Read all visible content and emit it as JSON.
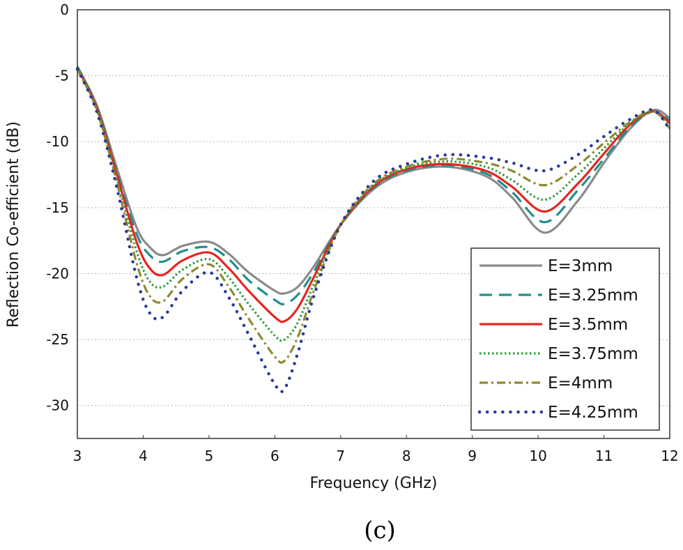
{
  "chart_data": {
    "type": "line",
    "xlabel": "Frequency (GHz)",
    "ylabel": "Reflection Co-efficient (dB)",
    "caption": "(c)",
    "xlim": [
      3,
      12
    ],
    "ylim": [
      -32.5,
      0
    ],
    "xticks": [
      "3",
      "4",
      "5",
      "6",
      "7",
      "8",
      "9",
      "10",
      "11",
      "12"
    ],
    "yticks": [
      "0",
      "-5",
      "-10",
      "-15",
      "-20",
      "-25",
      "-30"
    ],
    "grid": "horizontal dotted",
    "legend_position": "bottom-right",
    "x": [
      3.0,
      3.3,
      3.6,
      3.9,
      4.1,
      4.3,
      4.6,
      5.0,
      5.3,
      5.6,
      6.0,
      6.15,
      6.35,
      6.6,
      7.0,
      7.5,
      8.0,
      8.6,
      9.2,
      9.6,
      10.1,
      10.6,
      11.0,
      11.4,
      11.75,
      12.0
    ],
    "series": [
      {
        "name": "E=3mm",
        "color": "#8a8a8a",
        "dash": "solid",
        "values": [
          -4.3,
          -7.3,
          -12.0,
          -16.5,
          -18.0,
          -18.6,
          -17.9,
          -17.6,
          -18.5,
          -19.9,
          -21.3,
          -21.5,
          -21.0,
          -19.4,
          -16.3,
          -13.6,
          -12.3,
          -11.9,
          -12.6,
          -14.2,
          -16.9,
          -14.5,
          -11.6,
          -9.0,
          -7.6,
          -8.2
        ]
      },
      {
        "name": "E=3.25mm",
        "color": "#1f8f8c",
        "dash": "dashed",
        "values": [
          -4.3,
          -7.4,
          -12.3,
          -17.0,
          -18.6,
          -19.1,
          -18.3,
          -18.0,
          -18.9,
          -20.5,
          -22.0,
          -22.3,
          -21.6,
          -19.8,
          -16.3,
          -13.5,
          -12.2,
          -11.8,
          -12.4,
          -13.8,
          -16.1,
          -13.7,
          -11.3,
          -8.9,
          -7.7,
          -8.4
        ]
      },
      {
        "name": "E=3.5mm",
        "color": "#e8231f",
        "dash": "solid",
        "values": [
          -4.4,
          -7.5,
          -12.5,
          -17.6,
          -19.6,
          -20.1,
          -19.0,
          -18.4,
          -19.6,
          -21.3,
          -23.3,
          -23.6,
          -22.6,
          -20.2,
          -16.3,
          -13.4,
          -12.1,
          -11.7,
          -12.2,
          -13.4,
          -15.3,
          -13.2,
          -10.9,
          -8.7,
          -7.7,
          -8.6
        ]
      },
      {
        "name": "E=3.75mm",
        "color": "#2e9a3a",
        "dash": "dotted",
        "values": [
          -4.4,
          -7.6,
          -12.8,
          -18.3,
          -20.6,
          -21.0,
          -19.7,
          -18.9,
          -20.3,
          -22.3,
          -24.7,
          -25.0,
          -23.7,
          -20.7,
          -16.3,
          -13.3,
          -12.0,
          -11.5,
          -11.9,
          -12.9,
          -14.4,
          -12.5,
          -10.5,
          -8.6,
          -7.7,
          -8.8
        ]
      },
      {
        "name": "E=4mm",
        "color": "#8d8a2e",
        "dash": "dashdot",
        "values": [
          -4.5,
          -7.7,
          -13.1,
          -19.2,
          -21.7,
          -22.1,
          -20.4,
          -19.3,
          -21.0,
          -23.4,
          -26.3,
          -26.6,
          -24.8,
          -21.2,
          -16.3,
          -13.2,
          -11.9,
          -11.3,
          -11.6,
          -12.2,
          -13.3,
          -11.8,
          -10.1,
          -8.5,
          -7.7,
          -9.0
        ]
      },
      {
        "name": "E=4.25mm",
        "color": "#2a3a9a",
        "dash": "sparse-dotted",
        "values": [
          -4.5,
          -7.8,
          -13.5,
          -20.3,
          -23.0,
          -23.3,
          -21.3,
          -19.9,
          -21.8,
          -24.6,
          -28.4,
          -28.7,
          -26.0,
          -21.6,
          -16.3,
          -13.0,
          -11.7,
          -11.0,
          -11.2,
          -11.6,
          -12.2,
          -11.0,
          -9.6,
          -8.3,
          -7.6,
          -9.1
        ]
      }
    ]
  }
}
